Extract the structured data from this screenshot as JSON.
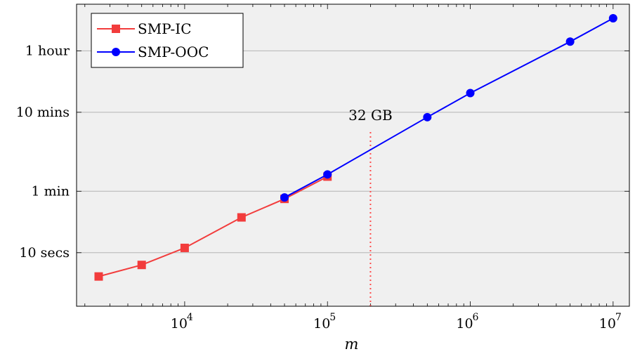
{
  "chart_data": {
    "type": "line",
    "xscale": "log",
    "yscale": "log",
    "xlabel": "m",
    "ylabel": "",
    "xlim": [
      1750,
      13000000
    ],
    "ylim": [
      2.1,
      14000
    ],
    "grid": "horizontal",
    "background": "#f0f0f0",
    "legend": {
      "position": "top-left"
    },
    "x_ticks": [
      {
        "value": 10000,
        "base": "10",
        "exp": "4"
      },
      {
        "value": 100000,
        "base": "10",
        "exp": "5"
      },
      {
        "value": 1000000,
        "base": "10",
        "exp": "6"
      },
      {
        "value": 10000000,
        "base": "10",
        "exp": "7"
      }
    ],
    "y_ticks": [
      {
        "value": 10,
        "label": "10 secs"
      },
      {
        "value": 60,
        "label": "1 min"
      },
      {
        "value": 600,
        "label": "10 mins"
      },
      {
        "value": 3600,
        "label": "1 hour"
      }
    ],
    "annotations": [
      {
        "x": 200000,
        "label": "32 GB",
        "color": "#ff4d4d",
        "style": "dotted"
      }
    ],
    "series": [
      {
        "name": "SMP-IC",
        "color": "#f23c3c",
        "marker": "square",
        "x": [
          2500,
          5000,
          10000,
          25000,
          50000,
          100000
        ],
        "y": [
          5,
          7,
          11.5,
          28,
          48,
          92
        ]
      },
      {
        "name": "SMP-OOC",
        "color": "#0000ff",
        "marker": "circle",
        "x": [
          50000,
          100000,
          500000,
          1000000,
          5000000,
          10000000
        ],
        "y": [
          50,
          98,
          520,
          1050,
          4700,
          9300
        ]
      }
    ]
  }
}
